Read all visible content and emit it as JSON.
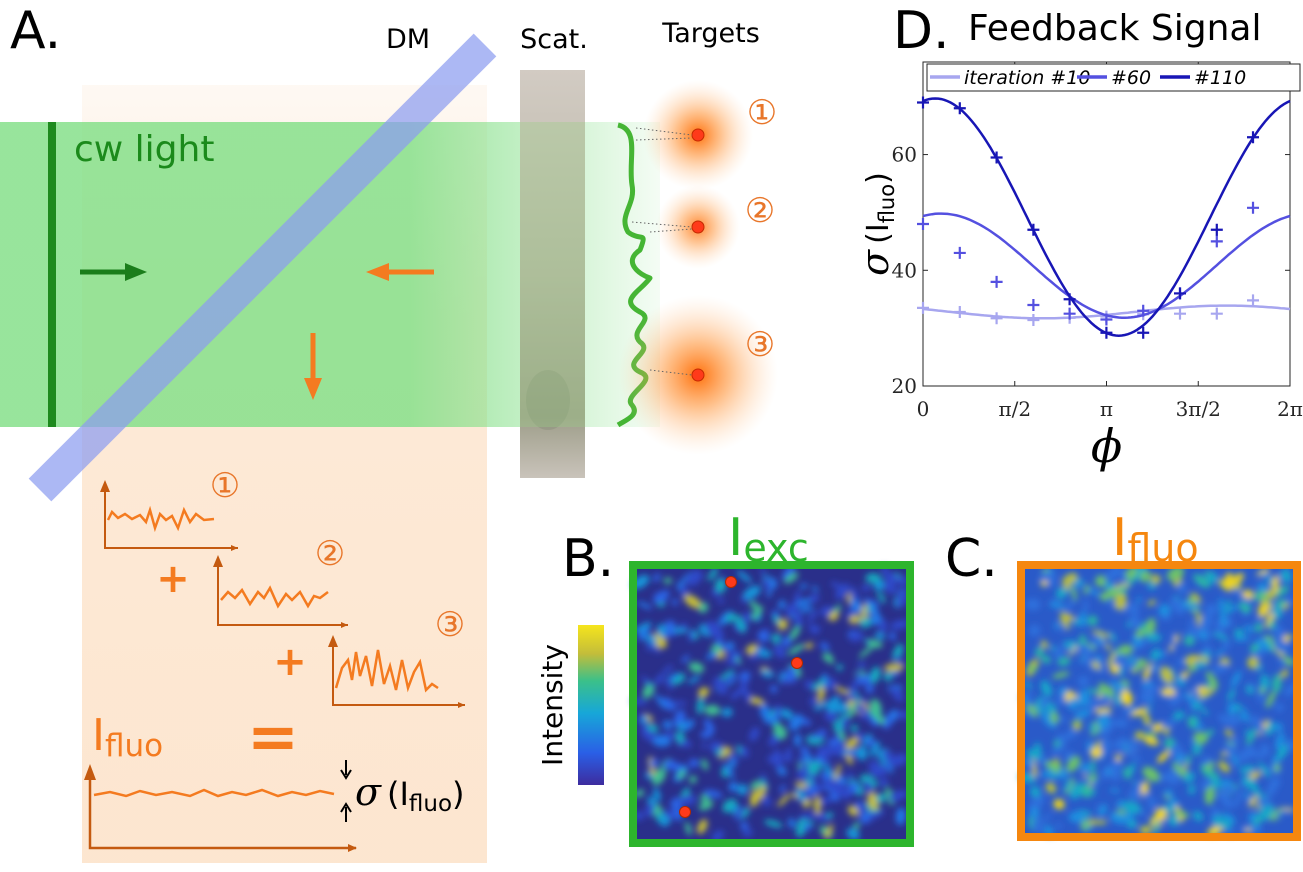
{
  "panel_a": {
    "letter": "A.",
    "dm_label": "DM",
    "scat_label": "Scat.",
    "targets_label": "Targets",
    "cw_label": "cw light",
    "target_numbers": [
      "①",
      "②",
      "③"
    ],
    "plus": "+",
    "equals": "=",
    "ifluo_main": "I",
    "ifluo_sub": "fluo",
    "sigma_label": "σ",
    "sigma_paren_open": "(I",
    "sigma_sub": "fluo",
    "sigma_paren_close": ")"
  },
  "panel_b": {
    "letter": "B.",
    "title_main": "I",
    "title_sub": "exc",
    "colorbar_label": "Intensity"
  },
  "panel_c": {
    "letter": "C.",
    "title_main": "I",
    "title_sub": "fluo"
  },
  "panel_d": {
    "letter": "D.",
    "title": "Feedback Signal"
  },
  "colors": {
    "green_beam": "#86e08a",
    "dark_green": "#1e8a1e",
    "orange": "#f47b20",
    "dm_blue": "#8c9df0",
    "exc_border": "#2db52d",
    "fluo_border": "#f5870f",
    "series_10": "#a7a6ef",
    "series_60": "#5450e0",
    "series_110": "#1816b5"
  },
  "chart_data": {
    "type": "line",
    "title": "",
    "xlabel": "ϕ",
    "ylabel_main": "σ",
    "ylabel_open": "(I",
    "ylabel_sub": "fluo",
    "ylabel_close": ")",
    "xlim": [
      0,
      6.2832
    ],
    "ylim": [
      20,
      76
    ],
    "xticks": [
      {
        "value": 0,
        "label": "0"
      },
      {
        "value": 1.5708,
        "label": "π/2"
      },
      {
        "value": 3.1416,
        "label": "π"
      },
      {
        "value": 4.7124,
        "label": "3π/2"
      },
      {
        "value": 6.2832,
        "label": "2π"
      }
    ],
    "yticks": [
      {
        "value": 20,
        "label": "20"
      },
      {
        "value": 40,
        "label": "40"
      },
      {
        "value": 60,
        "label": "60"
      }
    ],
    "legend_position": "top",
    "series": [
      {
        "name": "iteration #10",
        "color": "#a7a6ef",
        "points": [
          [
            0,
            33.5
          ],
          [
            0.63,
            32.8
          ],
          [
            1.26,
            31.7
          ],
          [
            1.89,
            31.4
          ],
          [
            2.51,
            31.8
          ],
          [
            3.14,
            32.0
          ],
          [
            3.77,
            32.4
          ],
          [
            4.4,
            32.5
          ],
          [
            5.03,
            32.5
          ],
          [
            5.65,
            34.8
          ]
        ],
        "fit": {
          "offset": 32.8,
          "amp": 1.1,
          "center": 2.05
        }
      },
      {
        "name": "#60",
        "color": "#5450e0",
        "points": [
          [
            0,
            48
          ],
          [
            0.63,
            43
          ],
          [
            1.26,
            38
          ],
          [
            1.89,
            34
          ],
          [
            2.51,
            32.5
          ],
          [
            3.14,
            31.5
          ],
          [
            3.77,
            33
          ],
          [
            4.4,
            36
          ],
          [
            5.03,
            45
          ],
          [
            5.65,
            50.8
          ]
        ],
        "fit": {
          "offset": 40.8,
          "amp": 9.0,
          "center": 3.45
        }
      },
      {
        "name": "#110",
        "color": "#1816b5",
        "points": [
          [
            0,
            69
          ],
          [
            0.63,
            68
          ],
          [
            1.26,
            59.5
          ],
          [
            1.89,
            47
          ],
          [
            2.51,
            35
          ],
          [
            3.14,
            29.2
          ],
          [
            3.77,
            29.2
          ],
          [
            4.4,
            36
          ],
          [
            5.03,
            47
          ],
          [
            5.65,
            63
          ]
        ],
        "fit": {
          "offset": 49.2,
          "amp": 20.5,
          "center": 3.35
        }
      }
    ]
  }
}
